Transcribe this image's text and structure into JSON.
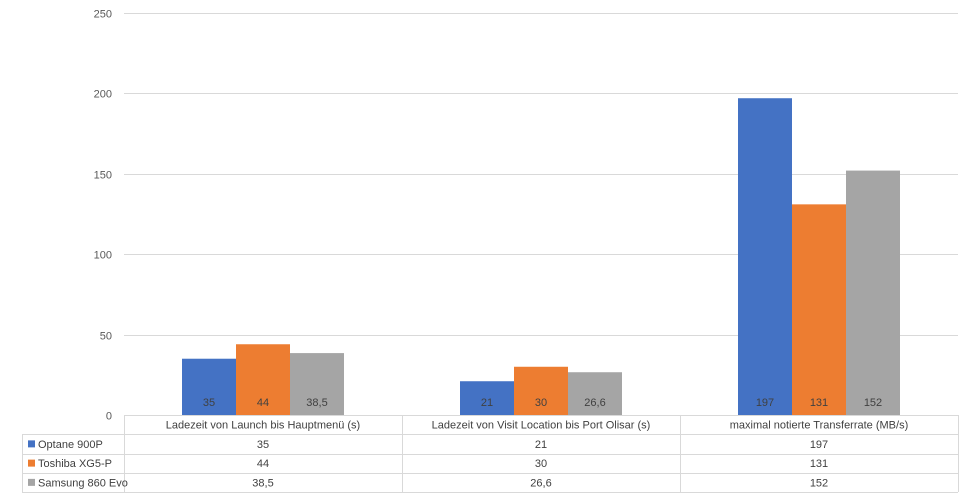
{
  "chart_data": {
    "type": "bar",
    "categories": [
      "Ladezeit von Launch bis Hauptmenü (s)",
      "Ladezeit von Visit Location bis Port Olisar (s)",
      "maximal notierte Transferrate (MB/s)"
    ],
    "series": [
      {
        "name": "Optane 900P",
        "color": "#4472c4",
        "values": [
          35,
          21,
          197
        ],
        "labels": [
          "35",
          "21",
          "197"
        ]
      },
      {
        "name": "Toshiba XG5-P",
        "color": "#ed7d31",
        "values": [
          44,
          30,
          131
        ],
        "labels": [
          "44",
          "30",
          "131"
        ]
      },
      {
        "name": "Samsung 860 Evo",
        "color": "#a5a5a5",
        "values": [
          38.5,
          26.6,
          152
        ],
        "labels": [
          "38,5",
          "26,6",
          "152"
        ]
      }
    ],
    "ylim": [
      0,
      250
    ],
    "yticks": [
      0,
      50,
      100,
      150,
      200,
      250
    ],
    "grid": true,
    "legend": "data-table-left",
    "data_table": true
  }
}
